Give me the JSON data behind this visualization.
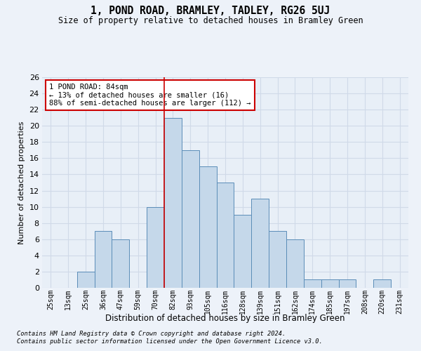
{
  "title": "1, POND ROAD, BRAMLEY, TADLEY, RG26 5UJ",
  "subtitle": "Size of property relative to detached houses in Bramley Green",
  "xlabel": "Distribution of detached houses by size in Bramley Green",
  "ylabel": "Number of detached properties",
  "tick_labels": [
    "25sqm",
    "13sqm",
    "25sqm",
    "36sqm",
    "47sqm",
    "59sqm",
    "70sqm",
    "82sqm",
    "93sqm",
    "105sqm",
    "116sqm",
    "128sqm",
    "139sqm",
    "151sqm",
    "162sqm",
    "174sqm",
    "185sqm",
    "197sqm",
    "208sqm",
    "220sqm",
    "231sqm"
  ],
  "bar_values": [
    0,
    0,
    2,
    7,
    6,
    0,
    10,
    21,
    17,
    15,
    13,
    9,
    11,
    7,
    6,
    1,
    1,
    1,
    0,
    1,
    0
  ],
  "bar_color": "#c5d8ea",
  "bar_edge_color": "#5b8db8",
  "bg_color": "#e8eff7",
  "grid_color": "#d0dae8",
  "fig_bg_color": "#edf2f9",
  "vline_x": 6.5,
  "vline_color": "#cc0000",
  "annotation_text": "1 POND ROAD: 84sqm\n← 13% of detached houses are smaller (16)\n88% of semi-detached houses are larger (112) →",
  "annotation_box_color": "#ffffff",
  "annotation_box_edge": "#cc0000",
  "ylim": [
    0,
    26
  ],
  "yticks": [
    0,
    2,
    4,
    6,
    8,
    10,
    12,
    14,
    16,
    18,
    20,
    22,
    24,
    26
  ],
  "footer1": "Contains HM Land Registry data © Crown copyright and database right 2024.",
  "footer2": "Contains public sector information licensed under the Open Government Licence v3.0."
}
